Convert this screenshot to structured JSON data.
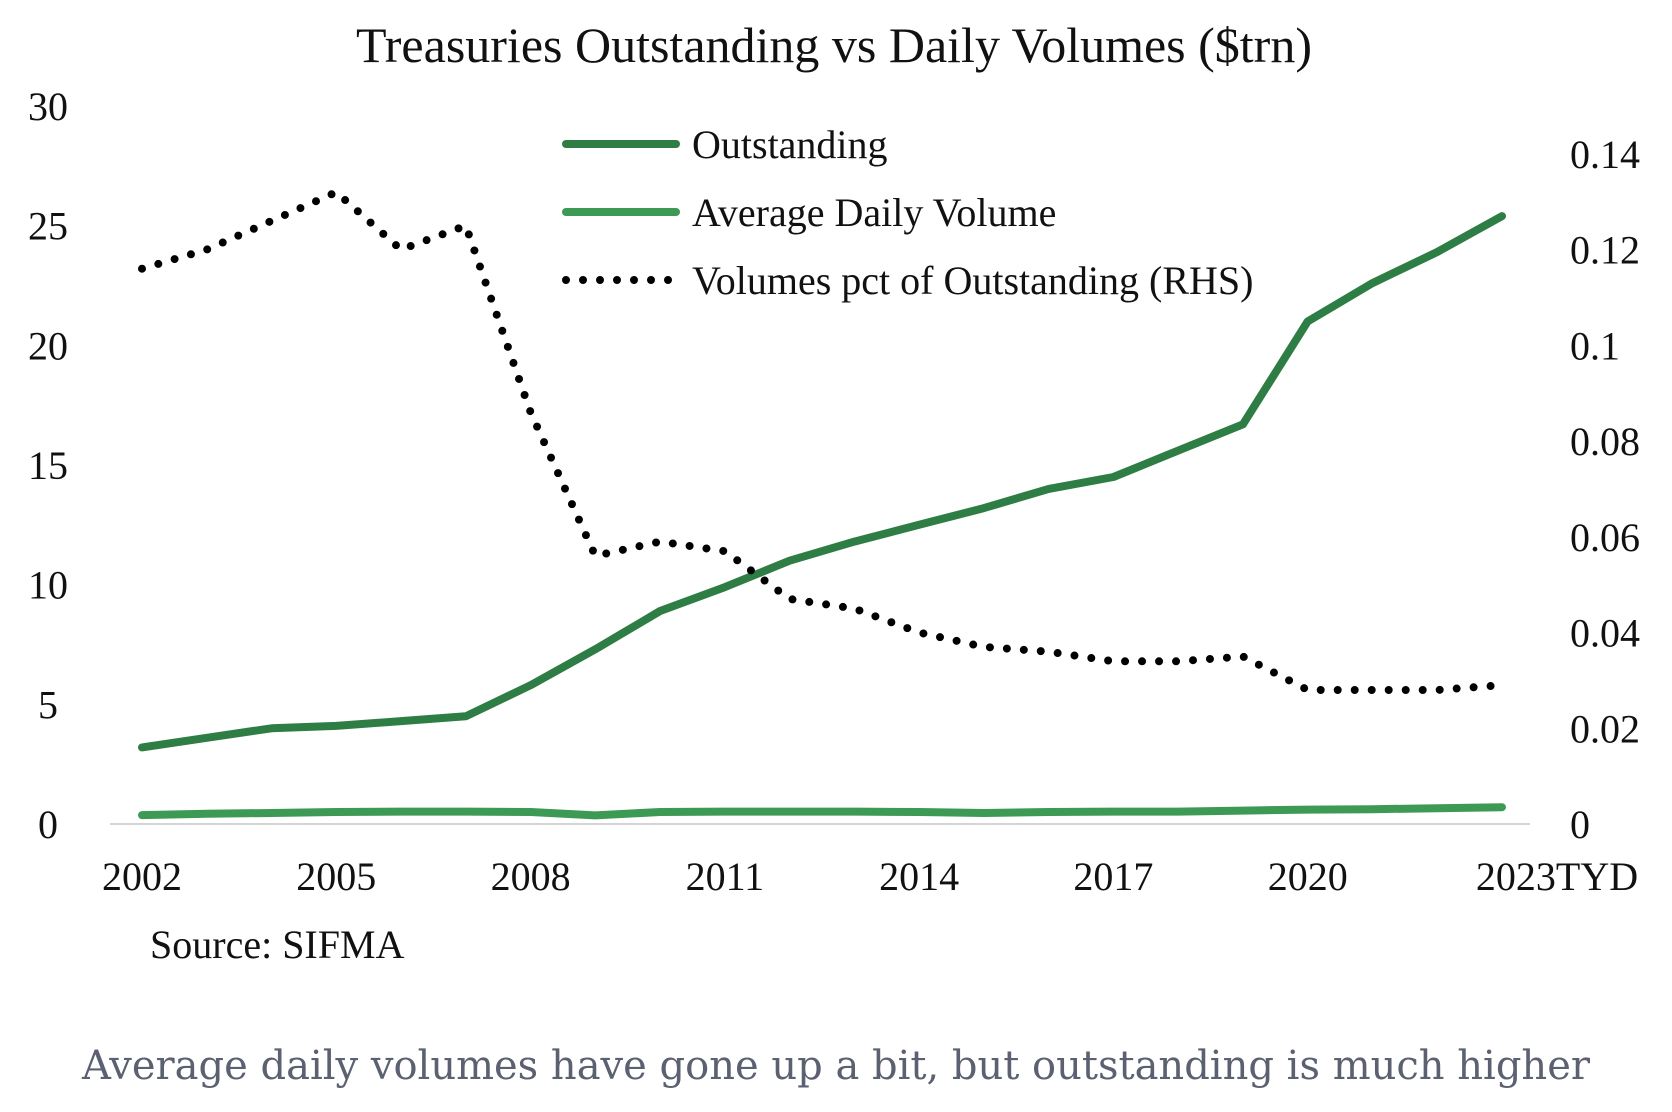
{
  "chart_data": {
    "type": "line",
    "title": "Treasuries Outstanding vs Daily Volumes ($trn)",
    "source": "Source: SIFMA",
    "x": [
      2002,
      2003,
      2004,
      2005,
      2006,
      2007,
      2008,
      2009,
      2010,
      2011,
      2012,
      2013,
      2014,
      2015,
      2016,
      2017,
      2018,
      2019,
      2020,
      2021,
      2022,
      2023
    ],
    "x_tick_labels": [
      {
        "x": 2002,
        "label": "2002"
      },
      {
        "x": 2005,
        "label": "2005"
      },
      {
        "x": 2008,
        "label": "2008"
      },
      {
        "x": 2011,
        "label": "2011"
      },
      {
        "x": 2014,
        "label": "2014"
      },
      {
        "x": 2017,
        "label": "2017"
      },
      {
        "x": 2020,
        "label": "2020"
      },
      {
        "x": 2023,
        "label": "2023TYD"
      }
    ],
    "y_left": {
      "ylim": [
        0,
        30
      ],
      "ticks": [
        "0",
        "5",
        "10",
        "15",
        "20",
        "25",
        "30"
      ]
    },
    "y_right": {
      "ylim": [
        0,
        0.15
      ],
      "ticks": [
        "0",
        "0.02",
        "0.04",
        "0.06",
        "0.08",
        "0.1",
        "0.12",
        "0.14"
      ]
    },
    "grid": false,
    "legend_placement": "top-center",
    "series": [
      {
        "name": "Outstanding",
        "axis": "left",
        "color": "#2e7d44",
        "style": "solid",
        "values": [
          3.2,
          3.6,
          4.0,
          4.1,
          4.3,
          4.5,
          5.8,
          7.3,
          8.9,
          9.9,
          11.0,
          11.8,
          12.5,
          13.2,
          14.0,
          14.5,
          15.6,
          16.7,
          21.0,
          22.6,
          23.9,
          25.4
        ]
      },
      {
        "name": "Average Daily Volume",
        "axis": "left",
        "color": "#3d9a55",
        "style": "solid",
        "values": [
          0.37,
          0.43,
          0.46,
          0.5,
          0.52,
          0.52,
          0.5,
          0.36,
          0.5,
          0.52,
          0.52,
          0.52,
          0.5,
          0.46,
          0.5,
          0.52,
          0.52,
          0.56,
          0.6,
          0.62,
          0.66,
          0.7
        ]
      },
      {
        "name": "Volumes pct of Outstanding (RHS)",
        "axis": "right",
        "color": "#000000",
        "style": "dotted",
        "values": [
          0.116,
          0.12,
          0.126,
          0.132,
          0.12,
          0.125,
          0.086,
          0.056,
          0.059,
          0.057,
          0.047,
          0.045,
          0.04,
          0.037,
          0.036,
          0.034,
          0.034,
          0.035,
          0.028,
          0.028,
          0.028,
          0.029
        ]
      }
    ]
  },
  "caption": "Average daily volumes have gone up a bit, but outstanding is much higher"
}
